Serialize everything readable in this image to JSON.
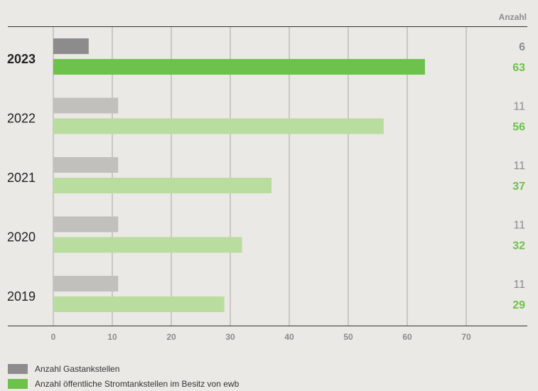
{
  "chart_data": {
    "type": "bar",
    "orientation": "horizontal",
    "title": "",
    "xlabel": "",
    "ylabel": "",
    "value_header": "Anzahl",
    "categories": [
      "2023",
      "2022",
      "2021",
      "2020",
      "2019"
    ],
    "highlight_category": "2023",
    "x_ticks": [
      0,
      10,
      20,
      30,
      40,
      50,
      60,
      70
    ],
    "xlim": [
      0,
      70
    ],
    "grid": "vertical",
    "legend_position": "bottom-left",
    "series": [
      {
        "name": "Anzahl Gastankstellen",
        "values": [
          6,
          11,
          11,
          11,
          11
        ],
        "color": "#8c8c8c",
        "color_muted": "#c2c0bd",
        "label_color": "#8c8c8c"
      },
      {
        "name": "Anzahl öffentliche Stromtankstellen im Besitz von ewb",
        "values": [
          63,
          56,
          37,
          32,
          29
        ],
        "color": "#6cc24a",
        "color_muted": "#b9dc9f",
        "label_color": "#6cc24a"
      }
    ]
  }
}
